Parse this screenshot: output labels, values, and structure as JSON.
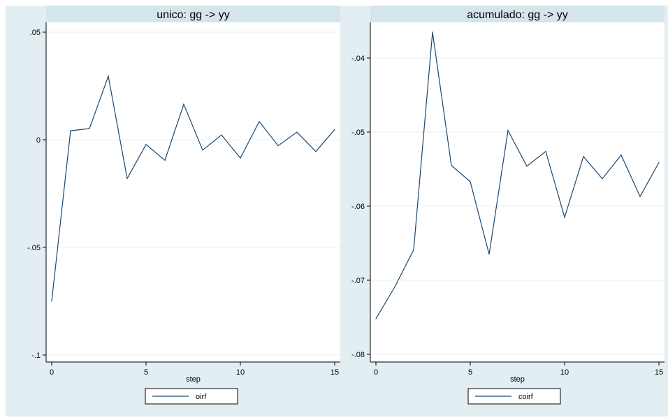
{
  "colors": {
    "background": "#e2eef2",
    "plot_area": "#ffffff",
    "title_strip": "#d4e6ec",
    "line": "#1a476f",
    "grid": "#eaf2f3"
  },
  "chart_data": [
    {
      "type": "line",
      "title": "unico: gg -> yy",
      "xlabel": "step",
      "ylabel": "",
      "xlim": [
        0,
        15
      ],
      "ylim": [
        -0.1,
        0.05
      ],
      "xticks": [
        0,
        5,
        10,
        15
      ],
      "xtick_labels": [
        "0",
        "5",
        "10",
        "15"
      ],
      "yticks": [
        -0.1,
        -0.05,
        0,
        0.05
      ],
      "ytick_labels": [
        "-.1",
        "-.05",
        "0",
        ".05"
      ],
      "grid": true,
      "legend_position": "bottom",
      "series": [
        {
          "name": "oirf",
          "x": [
            0,
            1,
            2,
            3,
            4,
            5,
            6,
            7,
            8,
            9,
            10,
            11,
            12,
            13,
            14,
            15
          ],
          "values": [
            -0.075,
            0.0042,
            0.0052,
            0.0295,
            -0.018,
            -0.0022,
            -0.0095,
            0.0165,
            -0.0048,
            0.0022,
            -0.0085,
            0.0085,
            -0.0028,
            0.0035,
            -0.0055,
            0.0048
          ]
        }
      ]
    },
    {
      "type": "line",
      "title": "acumulado: gg -> yy",
      "xlabel": "step",
      "ylabel": "",
      "xlim": [
        0,
        15
      ],
      "ylim": [
        -0.081,
        -0.0365
      ],
      "xticks": [
        0,
        5,
        10,
        15
      ],
      "xtick_labels": [
        "0",
        "5",
        "10",
        "15"
      ],
      "yticks": [
        -0.08,
        -0.07,
        -0.06,
        -0.05,
        -0.04
      ],
      "ytick_labels": [
        "-.08",
        "-.07",
        "-.06",
        "-.05",
        "-.04"
      ],
      "grid": true,
      "legend_position": "bottom",
      "series": [
        {
          "name": "coirf",
          "x": [
            0,
            1,
            2,
            3,
            4,
            5,
            6,
            7,
            8,
            9,
            10,
            11,
            12,
            13,
            14,
            15
          ],
          "values": [
            -0.0752,
            -0.0709,
            -0.0659,
            -0.0365,
            -0.0545,
            -0.0567,
            -0.0665,
            -0.0498,
            -0.0546,
            -0.0526,
            -0.0615,
            -0.0533,
            -0.0563,
            -0.0531,
            -0.0587,
            -0.0541
          ]
        }
      ]
    }
  ]
}
